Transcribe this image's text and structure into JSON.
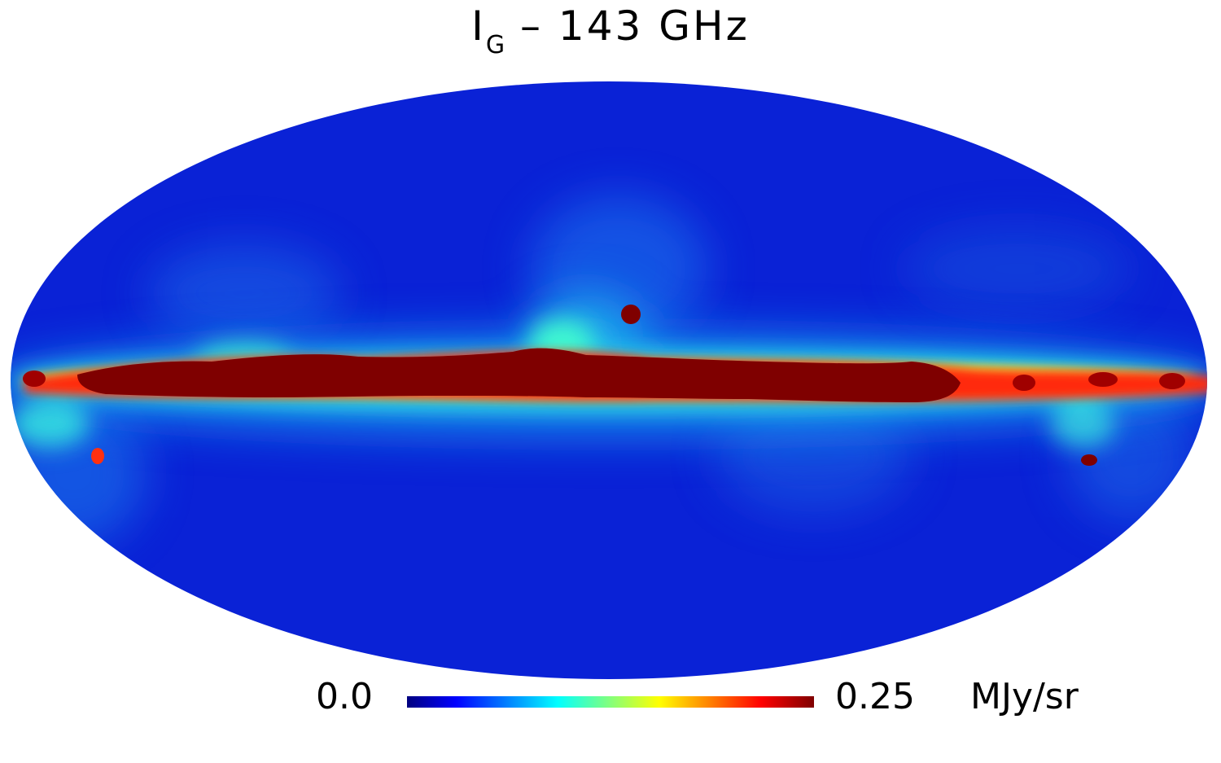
{
  "title": {
    "symbol": "I",
    "subscript": "G",
    "rest": " –  143 GHz"
  },
  "map": {
    "projection": "mollweide",
    "coordinate_frame": "galactic"
  },
  "colorbar": {
    "min_label": "0.0",
    "max_label": "0.25",
    "unit": "MJy/sr",
    "colors": [
      "#00007f",
      "#0000ff",
      "#00ffff",
      "#ffff00",
      "#ff0000",
      "#7f0000"
    ]
  }
}
